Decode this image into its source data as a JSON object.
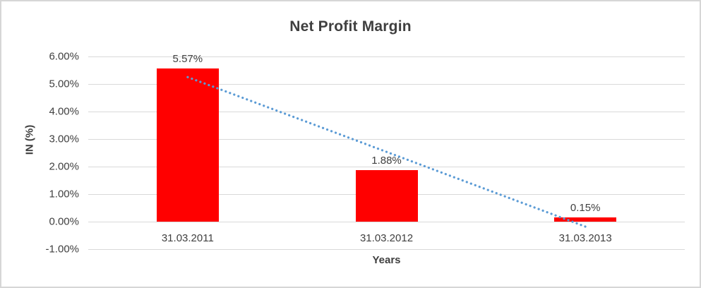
{
  "chart_data": {
    "type": "bar",
    "title": "Net Profit Margin",
    "xlabel": "Years",
    "ylabel": "IN (%)",
    "categories": [
      "31.03.2011",
      "31.03.2012",
      "31.03.2013"
    ],
    "values": [
      5.57,
      1.88,
      0.15
    ],
    "data_labels": [
      "5.57%",
      "1.88%",
      "0.15%"
    ],
    "y_ticks": [
      {
        "label": "6.00%",
        "value": 6
      },
      {
        "label": "5.00%",
        "value": 5
      },
      {
        "label": "4.00%",
        "value": 4
      },
      {
        "label": "3.00%",
        "value": 3
      },
      {
        "label": "2.00%",
        "value": 2
      },
      {
        "label": "1.00%",
        "value": 1
      },
      {
        "label": "0.00%",
        "value": 0
      },
      {
        "label": "-1.00%",
        "value": -1
      }
    ],
    "ylim": [
      -1,
      6
    ],
    "grid": true,
    "legend": false,
    "bar_color": "#ff0000",
    "gridline_color": "#d9d9d9",
    "text_color": "#404040",
    "trendline": {
      "type": "linear",
      "style": "dotted",
      "color": "#5b9bd5",
      "start_value": 5.25,
      "end_value": -0.18
    }
  }
}
